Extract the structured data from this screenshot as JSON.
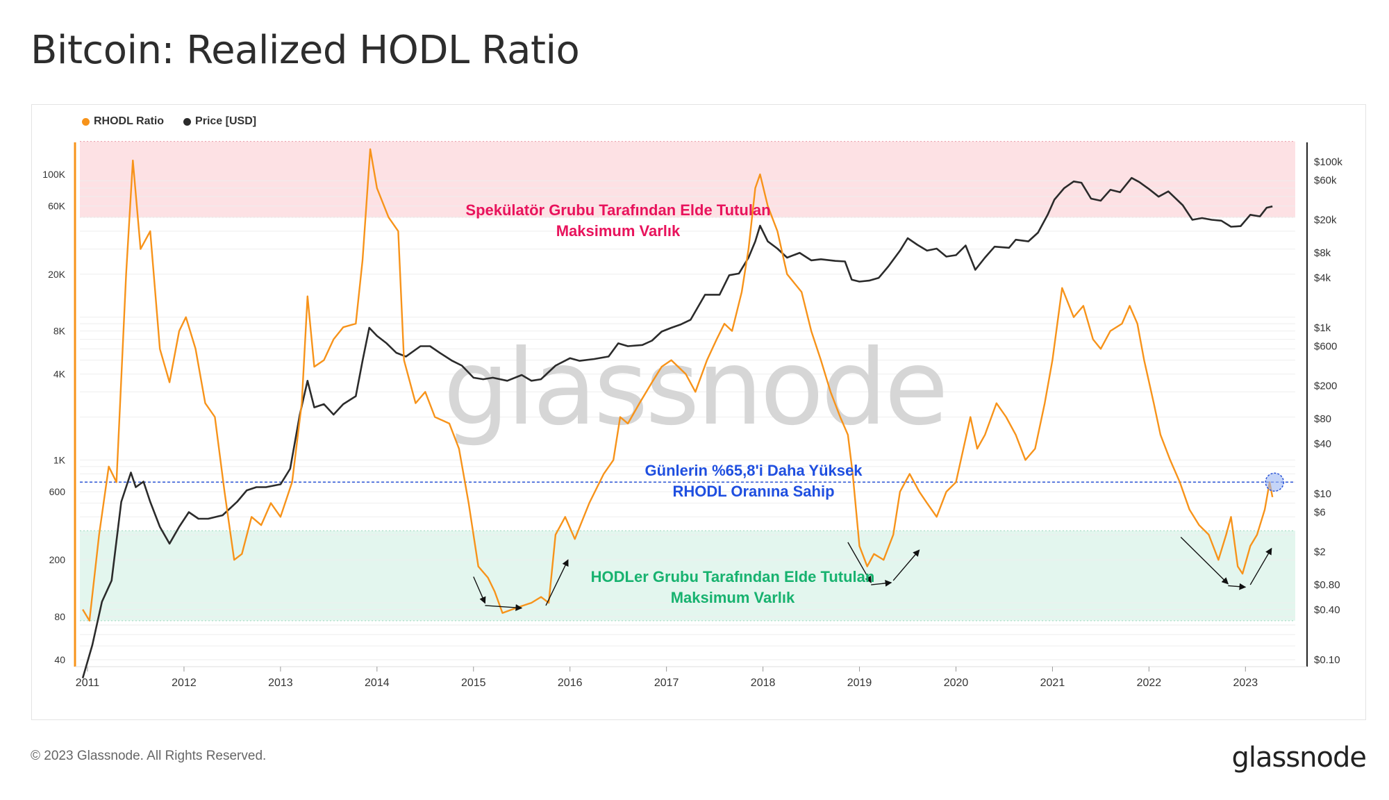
{
  "title": "Bitcoin: Realized HODL Ratio",
  "footer": "© 2023 Glassnode. All Rights Reserved.",
  "brand": "glassnode",
  "watermark": "glassnode",
  "colors": {
    "rhodl": "#f7931a",
    "price": "#2b2b2b",
    "top_band": "#fde1e4",
    "bottom_band": "#e3f6ee",
    "threshold": "#2b54d6",
    "top_text": "#e8135c",
    "bottom_text": "#17b26f",
    "mid_text": "#1f4fe0"
  },
  "chart_data": {
    "type": "line",
    "legend": [
      {
        "label": "RHODL Ratio",
        "color": "#f7931a"
      },
      {
        "label": "Price [USD]",
        "color": "#2b2b2b"
      }
    ],
    "x_ticks": [
      "2011",
      "2012",
      "2013",
      "2014",
      "2015",
      "2016",
      "2017",
      "2018",
      "2019",
      "2020",
      "2021",
      "2022",
      "2023"
    ],
    "y_left_ticks": [
      {
        "v": 100000,
        "t": "100K"
      },
      {
        "v": 60000,
        "t": "60K"
      },
      {
        "v": 20000,
        "t": "20K"
      },
      {
        "v": 8000,
        "t": "8K"
      },
      {
        "v": 4000,
        "t": "4K"
      },
      {
        "v": 1000,
        "t": "1K"
      },
      {
        "v": 600,
        "t": "600"
      },
      {
        "v": 200,
        "t": "200"
      },
      {
        "v": 80,
        "t": "80"
      },
      {
        "v": 40,
        "t": "40"
      }
    ],
    "y_right_ticks": [
      {
        "v": 100000,
        "t": "$100k"
      },
      {
        "v": 60000,
        "t": "$60k"
      },
      {
        "v": 20000,
        "t": "$20k"
      },
      {
        "v": 8000,
        "t": "$8k"
      },
      {
        "v": 4000,
        "t": "$4k"
      },
      {
        "v": 1000,
        "t": "$1k"
      },
      {
        "v": 600,
        "t": "$600"
      },
      {
        "v": 200,
        "t": "$200"
      },
      {
        "v": 80,
        "t": "$80"
      },
      {
        "v": 40,
        "t": "$40"
      },
      {
        "v": 10,
        "t": "$10"
      },
      {
        "v": 6,
        "t": "$6"
      },
      {
        "v": 2,
        "t": "$2"
      },
      {
        "v": 0.8,
        "t": "$0.80"
      },
      {
        "v": 0.4,
        "t": "$0.40"
      },
      {
        "v": 0.1,
        "t": "$0.10"
      }
    ],
    "y_left_scale": "log",
    "y_right_scale": "log",
    "rhodl": [
      [
        2010.95,
        90
      ],
      [
        2011.02,
        75
      ],
      [
        2011.12,
        300
      ],
      [
        2011.22,
        900
      ],
      [
        2011.3,
        700
      ],
      [
        2011.4,
        20000
      ],
      [
        2011.47,
        125000
      ],
      [
        2011.55,
        30000
      ],
      [
        2011.65,
        40000
      ],
      [
        2011.75,
        6000
      ],
      [
        2011.85,
        3500
      ],
      [
        2011.95,
        8000
      ],
      [
        2012.02,
        10000
      ],
      [
        2012.12,
        6000
      ],
      [
        2012.22,
        2500
      ],
      [
        2012.32,
        2000
      ],
      [
        2012.42,
        600
      ],
      [
        2012.52,
        200
      ],
      [
        2012.6,
        220
      ],
      [
        2012.7,
        400
      ],
      [
        2012.8,
        350
      ],
      [
        2012.9,
        500
      ],
      [
        2013.0,
        400
      ],
      [
        2013.12,
        700
      ],
      [
        2013.22,
        2500
      ],
      [
        2013.28,
        14000
      ],
      [
        2013.35,
        4500
      ],
      [
        2013.45,
        5000
      ],
      [
        2013.55,
        7000
      ],
      [
        2013.65,
        8500
      ],
      [
        2013.78,
        9000
      ],
      [
        2013.85,
        25000
      ],
      [
        2013.93,
        150000
      ],
      [
        2014.0,
        80000
      ],
      [
        2014.12,
        50000
      ],
      [
        2014.22,
        40000
      ],
      [
        2014.28,
        5000
      ],
      [
        2014.4,
        2500
      ],
      [
        2014.5,
        3000
      ],
      [
        2014.6,
        2000
      ],
      [
        2014.75,
        1800
      ],
      [
        2014.85,
        1200
      ],
      [
        2014.95,
        500
      ],
      [
        2015.05,
        180
      ],
      [
        2015.15,
        150
      ],
      [
        2015.22,
        120
      ],
      [
        2015.3,
        85
      ],
      [
        2015.4,
        90
      ],
      [
        2015.5,
        95
      ],
      [
        2015.6,
        100
      ],
      [
        2015.7,
        110
      ],
      [
        2015.78,
        100
      ],
      [
        2015.85,
        300
      ],
      [
        2015.95,
        400
      ],
      [
        2016.05,
        280
      ],
      [
        2016.2,
        500
      ],
      [
        2016.35,
        800
      ],
      [
        2016.45,
        1000
      ],
      [
        2016.52,
        2000
      ],
      [
        2016.6,
        1800
      ],
      [
        2016.72,
        2500
      ],
      [
        2016.85,
        3500
      ],
      [
        2016.95,
        4500
      ],
      [
        2017.05,
        5000
      ],
      [
        2017.2,
        4000
      ],
      [
        2017.3,
        3000
      ],
      [
        2017.42,
        5000
      ],
      [
        2017.52,
        7000
      ],
      [
        2017.6,
        9000
      ],
      [
        2017.68,
        8000
      ],
      [
        2017.78,
        15000
      ],
      [
        2017.85,
        30000
      ],
      [
        2017.92,
        80000
      ],
      [
        2017.97,
        100000
      ],
      [
        2018.05,
        60000
      ],
      [
        2018.15,
        40000
      ],
      [
        2018.25,
        20000
      ],
      [
        2018.4,
        15000
      ],
      [
        2018.5,
        8000
      ],
      [
        2018.6,
        5000
      ],
      [
        2018.7,
        3000
      ],
      [
        2018.8,
        2000
      ],
      [
        2018.88,
        1500
      ],
      [
        2018.93,
        800
      ],
      [
        2019.0,
        250
      ],
      [
        2019.08,
        180
      ],
      [
        2019.15,
        220
      ],
      [
        2019.25,
        200
      ],
      [
        2019.35,
        300
      ],
      [
        2019.42,
        600
      ],
      [
        2019.52,
        800
      ],
      [
        2019.62,
        600
      ],
      [
        2019.7,
        500
      ],
      [
        2019.8,
        400
      ],
      [
        2019.9,
        600
      ],
      [
        2020.0,
        700
      ],
      [
        2020.15,
        2000
      ],
      [
        2020.22,
        1200
      ],
      [
        2020.3,
        1500
      ],
      [
        2020.42,
        2500
      ],
      [
        2020.52,
        2000
      ],
      [
        2020.62,
        1500
      ],
      [
        2020.72,
        1000
      ],
      [
        2020.82,
        1200
      ],
      [
        2020.92,
        2500
      ],
      [
        2021.0,
        5000
      ],
      [
        2021.1,
        16000
      ],
      [
        2021.22,
        10000
      ],
      [
        2021.32,
        12000
      ],
      [
        2021.42,
        7000
      ],
      [
        2021.5,
        6000
      ],
      [
        2021.6,
        8000
      ],
      [
        2021.72,
        9000
      ],
      [
        2021.8,
        12000
      ],
      [
        2021.88,
        9000
      ],
      [
        2021.95,
        5000
      ],
      [
        2022.05,
        2500
      ],
      [
        2022.12,
        1500
      ],
      [
        2022.22,
        1000
      ],
      [
        2022.32,
        700
      ],
      [
        2022.42,
        450
      ],
      [
        2022.52,
        350
      ],
      [
        2022.62,
        300
      ],
      [
        2022.72,
        200
      ],
      [
        2022.8,
        300
      ],
      [
        2022.85,
        400
      ],
      [
        2022.92,
        180
      ],
      [
        2022.97,
        160
      ],
      [
        2023.05,
        250
      ],
      [
        2023.12,
        300
      ],
      [
        2023.2,
        450
      ],
      [
        2023.25,
        700
      ],
      [
        2023.28,
        550
      ]
    ],
    "price": [
      [
        2010.95,
        0.06
      ],
      [
        2011.05,
        0.15
      ],
      [
        2011.15,
        0.5
      ],
      [
        2011.25,
        0.9
      ],
      [
        2011.35,
        8
      ],
      [
        2011.45,
        18
      ],
      [
        2011.5,
        12
      ],
      [
        2011.58,
        14
      ],
      [
        2011.65,
        8
      ],
      [
        2011.75,
        4
      ],
      [
        2011.85,
        2.5
      ],
      [
        2011.95,
        4
      ],
      [
        2012.05,
        6
      ],
      [
        2012.15,
        5
      ],
      [
        2012.25,
        5
      ],
      [
        2012.4,
        5.5
      ],
      [
        2012.55,
        8
      ],
      [
        2012.65,
        11
      ],
      [
        2012.75,
        12
      ],
      [
        2012.85,
        12
      ],
      [
        2013.0,
        13
      ],
      [
        2013.1,
        20
      ],
      [
        2013.2,
        90
      ],
      [
        2013.28,
        230
      ],
      [
        2013.35,
        110
      ],
      [
        2013.45,
        120
      ],
      [
        2013.55,
        90
      ],
      [
        2013.65,
        120
      ],
      [
        2013.78,
        150
      ],
      [
        2013.85,
        400
      ],
      [
        2013.92,
        1000
      ],
      [
        2014.0,
        800
      ],
      [
        2014.1,
        650
      ],
      [
        2014.2,
        500
      ],
      [
        2014.3,
        450
      ],
      [
        2014.45,
        600
      ],
      [
        2014.55,
        600
      ],
      [
        2014.65,
        500
      ],
      [
        2014.78,
        400
      ],
      [
        2014.88,
        350
      ],
      [
        2015.0,
        250
      ],
      [
        2015.1,
        240
      ],
      [
        2015.2,
        250
      ],
      [
        2015.35,
        230
      ],
      [
        2015.5,
        270
      ],
      [
        2015.6,
        230
      ],
      [
        2015.7,
        240
      ],
      [
        2015.85,
        350
      ],
      [
        2016.0,
        430
      ],
      [
        2016.1,
        400
      ],
      [
        2016.25,
        420
      ],
      [
        2016.4,
        450
      ],
      [
        2016.5,
        650
      ],
      [
        2016.6,
        600
      ],
      [
        2016.75,
        620
      ],
      [
        2016.85,
        700
      ],
      [
        2016.95,
        900
      ],
      [
        2017.05,
        1000
      ],
      [
        2017.15,
        1100
      ],
      [
        2017.25,
        1250
      ],
      [
        2017.4,
        2500
      ],
      [
        2017.55,
        2500
      ],
      [
        2017.65,
        4300
      ],
      [
        2017.75,
        4500
      ],
      [
        2017.85,
        7000
      ],
      [
        2017.92,
        11000
      ],
      [
        2017.97,
        17000
      ],
      [
        2018.05,
        11000
      ],
      [
        2018.15,
        9000
      ],
      [
        2018.25,
        7000
      ],
      [
        2018.38,
        8000
      ],
      [
        2018.5,
        6500
      ],
      [
        2018.6,
        6700
      ],
      [
        2018.75,
        6400
      ],
      [
        2018.85,
        6300
      ],
      [
        2018.92,
        3800
      ],
      [
        2019.0,
        3600
      ],
      [
        2019.1,
        3700
      ],
      [
        2019.2,
        4000
      ],
      [
        2019.3,
        5500
      ],
      [
        2019.42,
        8500
      ],
      [
        2019.5,
        12000
      ],
      [
        2019.6,
        10000
      ],
      [
        2019.7,
        8500
      ],
      [
        2019.8,
        9000
      ],
      [
        2019.9,
        7200
      ],
      [
        2020.0,
        7500
      ],
      [
        2020.1,
        9800
      ],
      [
        2020.2,
        5000
      ],
      [
        2020.3,
        7000
      ],
      [
        2020.4,
        9500
      ],
      [
        2020.55,
        9200
      ],
      [
        2020.62,
        11500
      ],
      [
        2020.75,
        11000
      ],
      [
        2020.85,
        14000
      ],
      [
        2020.95,
        23000
      ],
      [
        2021.02,
        35000
      ],
      [
        2021.12,
        48000
      ],
      [
        2021.22,
        58000
      ],
      [
        2021.3,
        56000
      ],
      [
        2021.4,
        36000
      ],
      [
        2021.5,
        34000
      ],
      [
        2021.6,
        46000
      ],
      [
        2021.7,
        43000
      ],
      [
        2021.82,
        64000
      ],
      [
        2021.9,
        57000
      ],
      [
        2022.0,
        47000
      ],
      [
        2022.1,
        38000
      ],
      [
        2022.2,
        44000
      ],
      [
        2022.35,
        30000
      ],
      [
        2022.45,
        20000
      ],
      [
        2022.55,
        21000
      ],
      [
        2022.65,
        20000
      ],
      [
        2022.75,
        19500
      ],
      [
        2022.85,
        16500
      ],
      [
        2022.95,
        16800
      ],
      [
        2023.05,
        23000
      ],
      [
        2023.15,
        22000
      ],
      [
        2023.22,
        28000
      ],
      [
        2023.28,
        29000
      ]
    ],
    "threshold": 700,
    "top_band": [
      50000,
      170000
    ],
    "bottom_band": [
      75,
      320
    ],
    "annotations": {
      "top": [
        "Spekülatör Grubu Tarafından Elde Tutulan",
        "Maksimum Varlık"
      ],
      "middle": [
        "Günlerin %65,8'i Daha Yüksek",
        "RHODL Oranına Sahip"
      ],
      "bottom": [
        "HODLer Grubu Tarafından Elde Tutulan",
        "Maksimum Varlık"
      ]
    }
  }
}
